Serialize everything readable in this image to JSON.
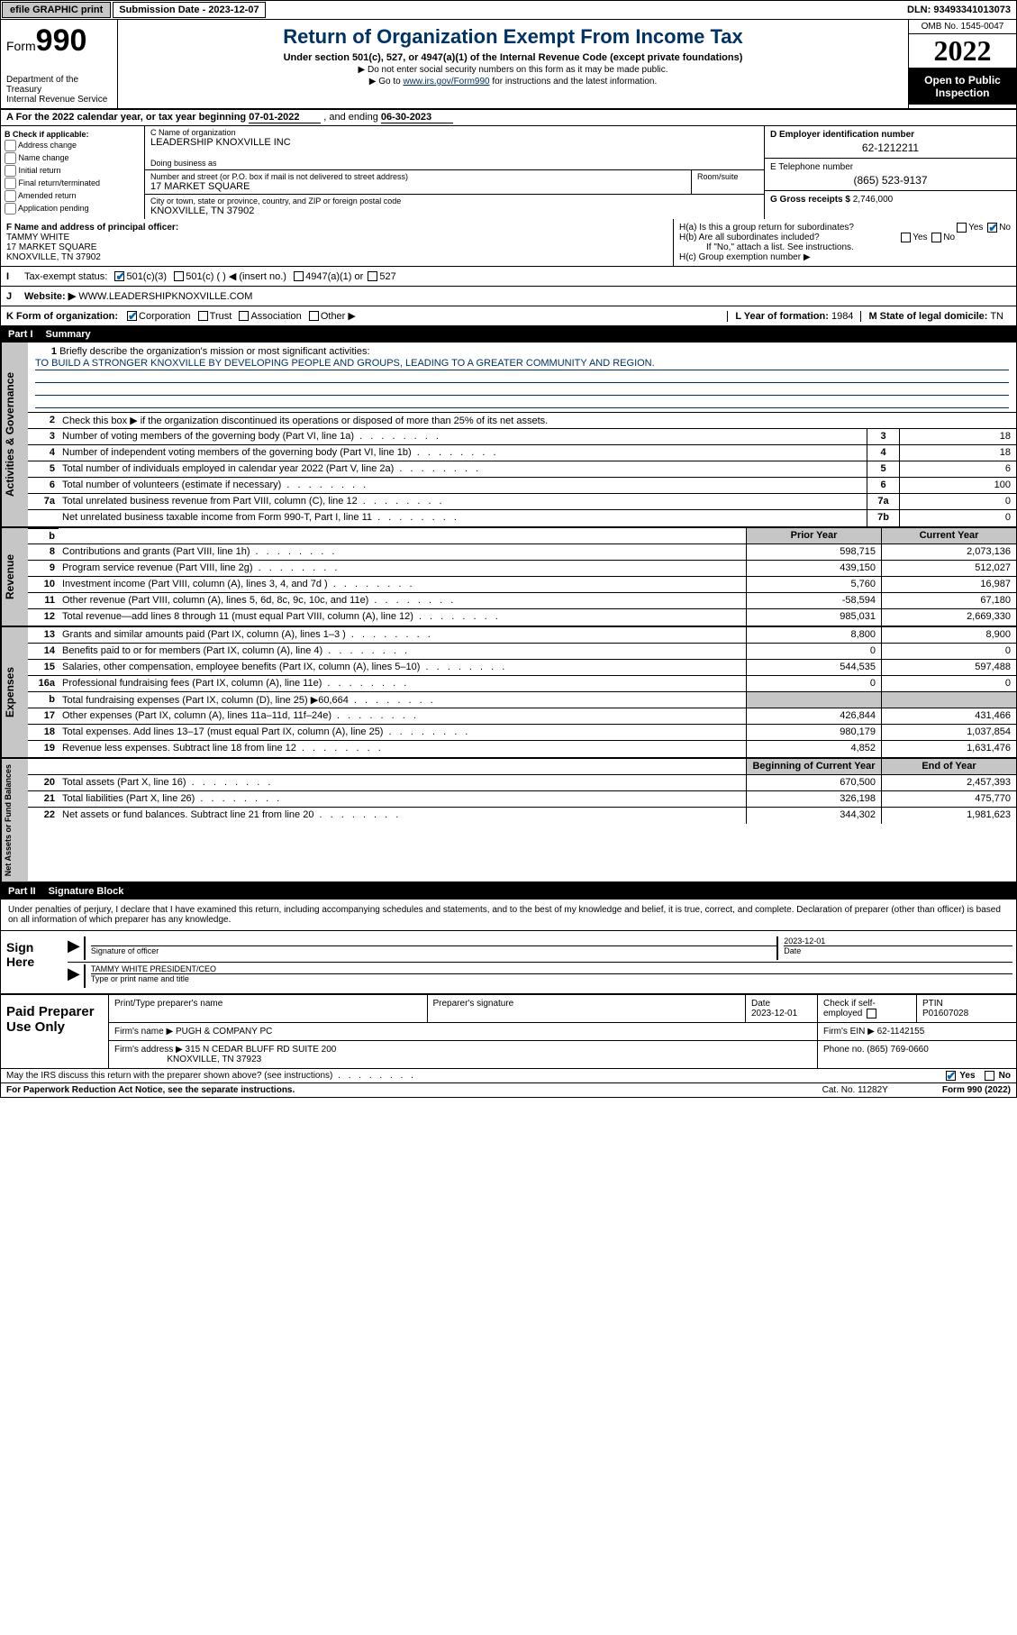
{
  "topbar": {
    "efile": "efile GRAPHIC print",
    "sub_label": "Submission Date - 2023-12-07",
    "dln": "DLN: 93493341013073"
  },
  "header": {
    "form_prefix": "Form",
    "form_num": "990",
    "title": "Return of Organization Exempt From Income Tax",
    "subtitle": "Under section 501(c), 527, or 4947(a)(1) of the Internal Revenue Code (except private foundations)",
    "note1": "▶ Do not enter social security numbers on this form as it may be made public.",
    "note2_pre": "▶ Go to ",
    "note2_link": "www.irs.gov/Form990",
    "note2_post": " for instructions and the latest information.",
    "dept": "Department of the Treasury\nInternal Revenue Service",
    "omb": "OMB No. 1545-0047",
    "year": "2022",
    "inspect": "Open to Public Inspection"
  },
  "line_a": {
    "text_pre": "A For the 2022 calendar year, or tax year beginning ",
    "begin": "07-01-2022",
    "mid": " , and ending ",
    "end": "06-30-2023"
  },
  "col_b": {
    "label": "B Check if applicable:",
    "opts": [
      "Address change",
      "Name change",
      "Initial return",
      "Final return/terminated",
      "Amended return",
      "Application pending"
    ]
  },
  "col_c": {
    "name_label": "C Name of organization",
    "name": "LEADERSHIP KNOXVILLE INC",
    "dba_label": "Doing business as",
    "dba": "",
    "street_label": "Number and street (or P.O. box if mail is not delivered to street address)",
    "room_label": "Room/suite",
    "street": "17 MARKET SQUARE",
    "city_label": "City or town, state or province, country, and ZIP or foreign postal code",
    "city": "KNOXVILLE, TN  37902"
  },
  "col_d": {
    "ein_label": "D Employer identification number",
    "ein": "62-1212211",
    "phone_label": "E Telephone number",
    "phone": "(865) 523-9137",
    "gross_label": "G Gross receipts $",
    "gross": "2,746,000"
  },
  "block_fgh": {
    "f_label": "F Name and address of principal officer:",
    "f_name": "TAMMY WHITE",
    "f_addr1": "17 MARKET SQUARE",
    "f_addr2": "KNOXVILLE, TN  37902",
    "ha": "H(a)  Is this a group return for subordinates?",
    "hb": "H(b)  Are all subordinates included?",
    "hb_note": "If \"No,\" attach a list. See instructions.",
    "hc": "H(c)  Group exemption number ▶",
    "yes": "Yes",
    "no": "No"
  },
  "row_i": {
    "label": "Tax-exempt status:",
    "o1": "501(c)(3)",
    "o2": "501(c) (  ) ◀ (insert no.)",
    "o3": "4947(a)(1) or",
    "o4": "527"
  },
  "row_j": {
    "label": "Website: ▶",
    "val": "WWW.LEADERSHIPKNOXVILLE.COM"
  },
  "row_k": {
    "label": "K Form of organization:",
    "o1": "Corporation",
    "o2": "Trust",
    "o3": "Association",
    "o4": "Other ▶",
    "l_label": "L Year of formation:",
    "l_val": "1984",
    "m_label": "M State of legal domicile:",
    "m_val": "TN"
  },
  "part1": {
    "num": "Part I",
    "title": "Summary",
    "l1": "Briefly describe the organization's mission or most significant activities:",
    "mission": "TO BUILD A STRONGER KNOXVILLE BY DEVELOPING PEOPLE AND GROUPS, LEADING TO A GREATER COMMUNITY AND REGION.",
    "l2": "Check this box ▶       if the organization discontinued its operations or disposed of more than 25% of its net assets.",
    "ag_lines": [
      {
        "n": "3",
        "t": "Number of voting members of the governing body (Part VI, line 1a)",
        "k": "3",
        "v": "18"
      },
      {
        "n": "4",
        "t": "Number of independent voting members of the governing body (Part VI, line 1b)",
        "k": "4",
        "v": "18"
      },
      {
        "n": "5",
        "t": "Total number of individuals employed in calendar year 2022 (Part V, line 2a)",
        "k": "5",
        "v": "6"
      },
      {
        "n": "6",
        "t": "Total number of volunteers (estimate if necessary)",
        "k": "6",
        "v": "100"
      },
      {
        "n": "7a",
        "t": "Total unrelated business revenue from Part VIII, column (C), line 12",
        "k": "7a",
        "v": "0"
      },
      {
        "n": "",
        "t": "Net unrelated business taxable income from Form 990-T, Part I, line 11",
        "k": "7b",
        "v": "0"
      }
    ],
    "prior_hdr": "Prior Year",
    "curr_hdr": "Current Year",
    "rev_lines": [
      {
        "n": "8",
        "t": "Contributions and grants (Part VIII, line 1h)",
        "p": "598,715",
        "c": "2,073,136"
      },
      {
        "n": "9",
        "t": "Program service revenue (Part VIII, line 2g)",
        "p": "439,150",
        "c": "512,027"
      },
      {
        "n": "10",
        "t": "Investment income (Part VIII, column (A), lines 3, 4, and 7d )",
        "p": "5,760",
        "c": "16,987"
      },
      {
        "n": "11",
        "t": "Other revenue (Part VIII, column (A), lines 5, 6d, 8c, 9c, 10c, and 11e)",
        "p": "-58,594",
        "c": "67,180"
      },
      {
        "n": "12",
        "t": "Total revenue—add lines 8 through 11 (must equal Part VIII, column (A), line 12)",
        "p": "985,031",
        "c": "2,669,330"
      }
    ],
    "exp_lines": [
      {
        "n": "13",
        "t": "Grants and similar amounts paid (Part IX, column (A), lines 1–3 )",
        "p": "8,800",
        "c": "8,900"
      },
      {
        "n": "14",
        "t": "Benefits paid to or for members (Part IX, column (A), line 4)",
        "p": "0",
        "c": "0"
      },
      {
        "n": "15",
        "t": "Salaries, other compensation, employee benefits (Part IX, column (A), lines 5–10)",
        "p": "544,535",
        "c": "597,488"
      },
      {
        "n": "16a",
        "t": "Professional fundraising fees (Part IX, column (A), line 11e)",
        "p": "0",
        "c": "0"
      },
      {
        "n": "b",
        "t": "Total fundraising expenses (Part IX, column (D), line 25) ▶60,664",
        "p": "",
        "c": ""
      },
      {
        "n": "17",
        "t": "Other expenses (Part IX, column (A), lines 11a–11d, 11f–24e)",
        "p": "426,844",
        "c": "431,466"
      },
      {
        "n": "18",
        "t": "Total expenses. Add lines 13–17 (must equal Part IX, column (A), line 25)",
        "p": "980,179",
        "c": "1,037,854"
      },
      {
        "n": "19",
        "t": "Revenue less expenses. Subtract line 18 from line 12",
        "p": "4,852",
        "c": "1,631,476"
      }
    ],
    "na_hdr1": "Beginning of Current Year",
    "na_hdr2": "End of Year",
    "na_lines": [
      {
        "n": "20",
        "t": "Total assets (Part X, line 16)",
        "p": "670,500",
        "c": "2,457,393"
      },
      {
        "n": "21",
        "t": "Total liabilities (Part X, line 26)",
        "p": "326,198",
        "c": "475,770"
      },
      {
        "n": "22",
        "t": "Net assets or fund balances. Subtract line 21 from line 20",
        "p": "344,302",
        "c": "1,981,623"
      }
    ]
  },
  "part2": {
    "num": "Part II",
    "title": "Signature Block",
    "decl": "Under penalties of perjury, I declare that I have examined this return, including accompanying schedules and statements, and to the best of my knowledge and belief, it is true, correct, and complete. Declaration of preparer (other than officer) is based on all information of which preparer has any knowledge.",
    "sign_here": "Sign Here",
    "sig_officer": "Signature of officer",
    "date": "Date",
    "sig_date": "2023-12-01",
    "officer_name": "TAMMY WHITE PRESIDENT/CEO",
    "name_title": "Type or print name and title",
    "paid": "Paid Preparer Use Only",
    "prep_name_lbl": "Print/Type preparer's name",
    "prep_sig_lbl": "Preparer's signature",
    "prep_date_lbl": "Date",
    "prep_date": "2023-12-01",
    "check_self": "Check        if self-employed",
    "ptin_lbl": "PTIN",
    "ptin": "P01607028",
    "firm_name_lbl": "Firm's name    ▶",
    "firm_name": "PUGH & COMPANY PC",
    "firm_ein_lbl": "Firm's EIN ▶",
    "firm_ein": "62-1142155",
    "firm_addr_lbl": "Firm's address ▶",
    "firm_addr1": "315 N CEDAR BLUFF RD SUITE 200",
    "firm_addr2": "KNOXVILLE, TN  37923",
    "firm_phone_lbl": "Phone no.",
    "firm_phone": "(865) 769-0660",
    "discuss": "May the IRS discuss this return with the preparer shown above? (see instructions)",
    "yes": "Yes",
    "no": "No"
  },
  "bottom": {
    "paperwork": "For Paperwork Reduction Act Notice, see the separate instructions.",
    "cat": "Cat. No. 11282Y",
    "form": "Form 990 (2022)"
  }
}
